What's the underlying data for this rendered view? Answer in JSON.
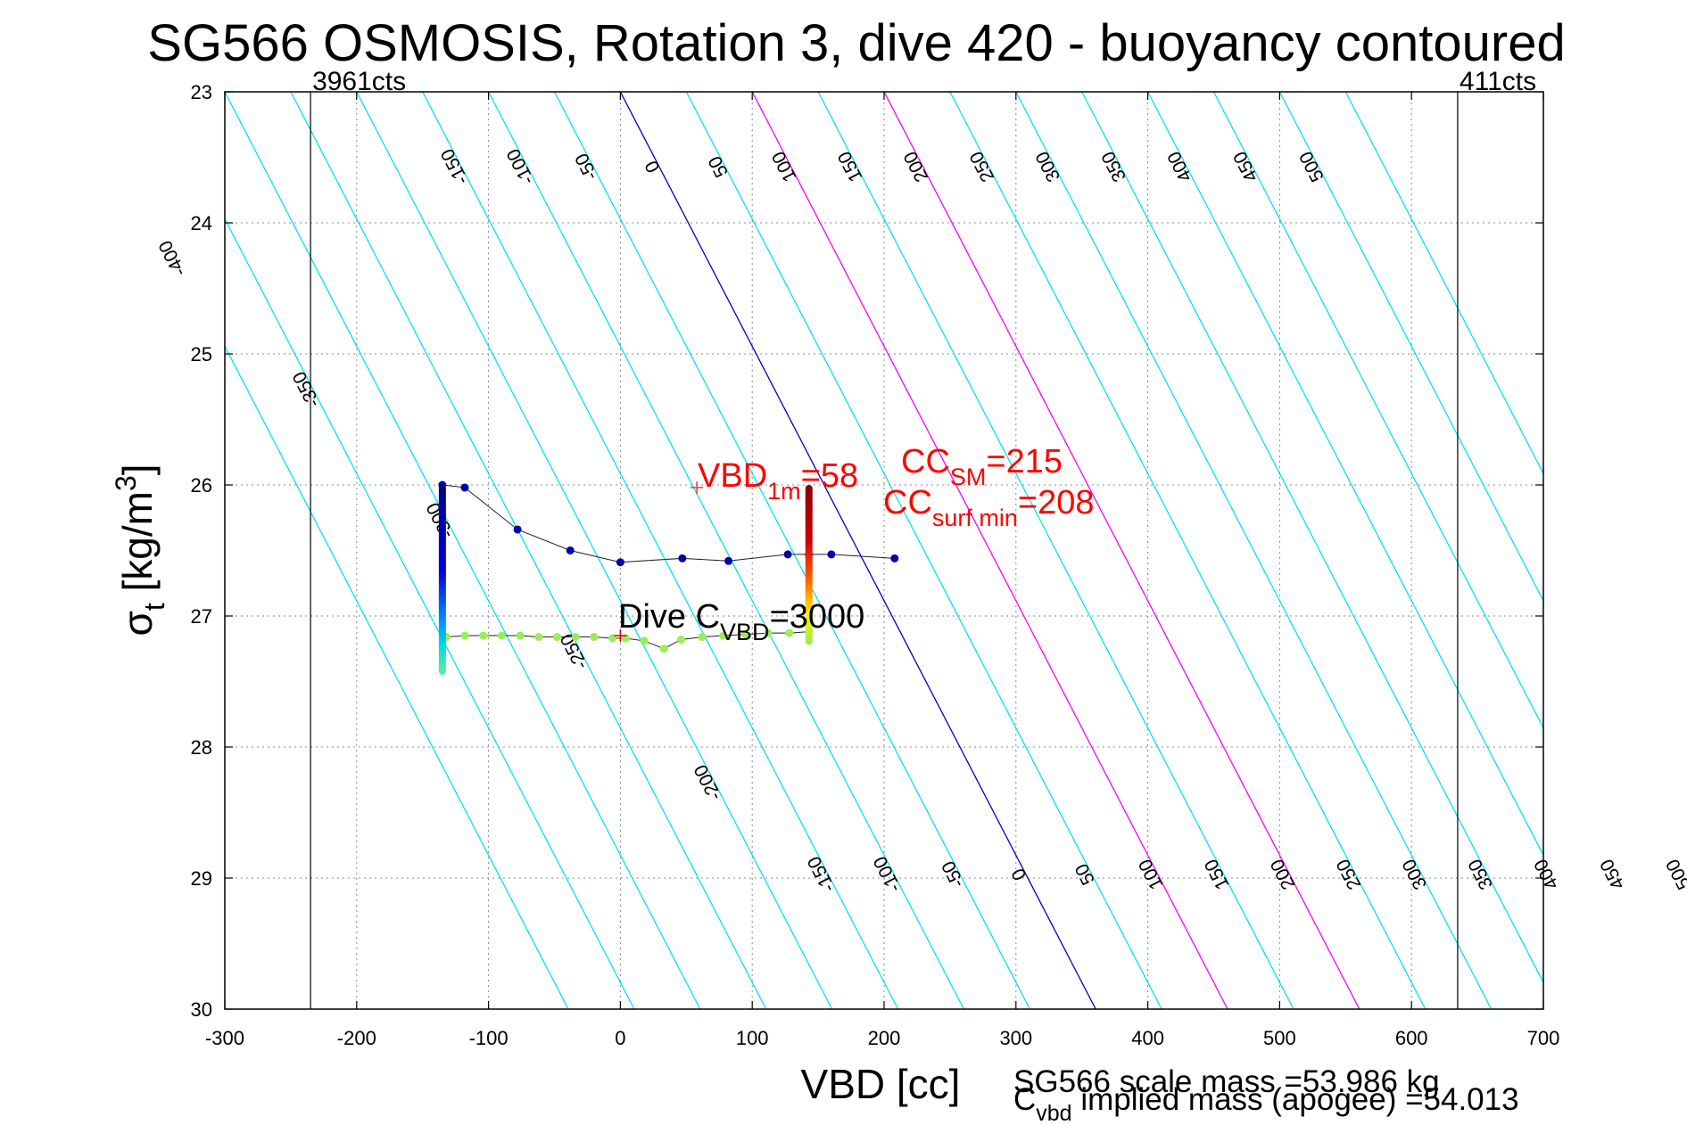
{
  "chart_data": {
    "type": "line",
    "title": "SG566 OSMOSIS, Rotation 3, dive 420 - buoyancy contoured",
    "xlabel": "VBD [cc]",
    "ylabel": "σ_t [kg/m^3]",
    "ylabel_main": "σ",
    "ylabel_sub": "t",
    "ylabel_rest": " [kg/m",
    "ylabel_sup": "3",
    "ylabel_close": "]",
    "xlim": [
      -300,
      700
    ],
    "ylim": [
      23,
      30
    ],
    "y_reversed": true,
    "x_ticks": [
      -300,
      -200,
      -100,
      0,
      100,
      200,
      300,
      400,
      500,
      600,
      700
    ],
    "y_ticks": [
      23,
      24,
      25,
      26,
      27,
      28,
      29,
      30
    ],
    "grid": true,
    "slope_cc_per_sigma": 51.5,
    "contour_levels": [
      -400,
      -350,
      -300,
      -250,
      -200,
      -150,
      -100,
      -50,
      0,
      50,
      100,
      150,
      200,
      250,
      300,
      350,
      400,
      450,
      500,
      550
    ],
    "contour_labels_top": [
      -150,
      -100,
      -50,
      0,
      50,
      100,
      150,
      200,
      250,
      300,
      350,
      400,
      450,
      500
    ],
    "contour_labels_left": [
      -400,
      -350,
      -300,
      -250,
      -200
    ],
    "contour_labels_bottom": [
      -150,
      -100,
      -50,
      0,
      50,
      100,
      150,
      200,
      250,
      300,
      350,
      400,
      450,
      500
    ],
    "contour_colors": {
      "default": "#00e5ee",
      "zero": "#0000cc",
      "highlight": "#ff00ff"
    },
    "highlight_levels": [
      100,
      200
    ],
    "vertical_lines": [
      {
        "x": -235,
        "label": "3961cts"
      },
      {
        "x": 635,
        "label": "411cts"
      }
    ],
    "series": [
      {
        "name": "dive",
        "color": "#0000aa",
        "points": [
          [
            -135,
            26.0
          ],
          [
            -118,
            26.02
          ],
          [
            -78,
            26.34
          ],
          [
            -38,
            26.5
          ],
          [
            0,
            26.59
          ],
          [
            47,
            26.56
          ],
          [
            82,
            26.58
          ],
          [
            127,
            26.53
          ],
          [
            143,
            26.53
          ],
          [
            160,
            26.53
          ],
          [
            208,
            26.56
          ]
        ]
      },
      {
        "name": "climb",
        "color": "#99ee55",
        "points": [
          [
            -132,
            27.16
          ],
          [
            -118,
            27.15
          ],
          [
            -104,
            27.15
          ],
          [
            -90,
            27.15
          ],
          [
            -76,
            27.15
          ],
          [
            -62,
            27.16
          ],
          [
            -48,
            27.16
          ],
          [
            -34,
            27.16
          ],
          [
            -20,
            27.16
          ],
          [
            -6,
            27.17
          ],
          [
            4,
            27.17
          ],
          [
            18,
            27.19
          ],
          [
            33,
            27.25
          ],
          [
            46,
            27.18
          ],
          [
            62,
            27.16
          ],
          [
            78,
            27.15
          ],
          [
            95,
            27.14
          ],
          [
            112,
            27.13
          ],
          [
            128,
            27.13
          ],
          [
            143,
            27.12
          ]
        ]
      }
    ],
    "profile_columns": [
      {
        "x": -135,
        "top": 26.0,
        "bottom": 27.45
      },
      {
        "x": 143,
        "top": 26.0,
        "bottom": 27.22
      }
    ],
    "annotations": {
      "vbd1m_label": "VBD",
      "vbd1m_sub": "1m",
      "vbd1m_value": "=58",
      "vbd1m_marker": [
        58,
        26.02
      ],
      "cc_sm_label": "CC",
      "cc_sm_sub": "SM",
      "cc_sm_value": "=215",
      "cc_surf_label": "CC",
      "cc_surf_sub": "surf min",
      "cc_surf_value": "=208",
      "dive_c_label": "Dive C",
      "dive_c_sub": "VBD",
      "dive_c_value": "=3000",
      "dive_c_marker": [
        0,
        27.15
      ]
    },
    "footer": {
      "scale_mass": "SG566 scale mass =53.986 kg",
      "implied_c": "C",
      "implied_sub": "vbd",
      "implied_rest": " implied mass (apogee) =54.013"
    }
  }
}
